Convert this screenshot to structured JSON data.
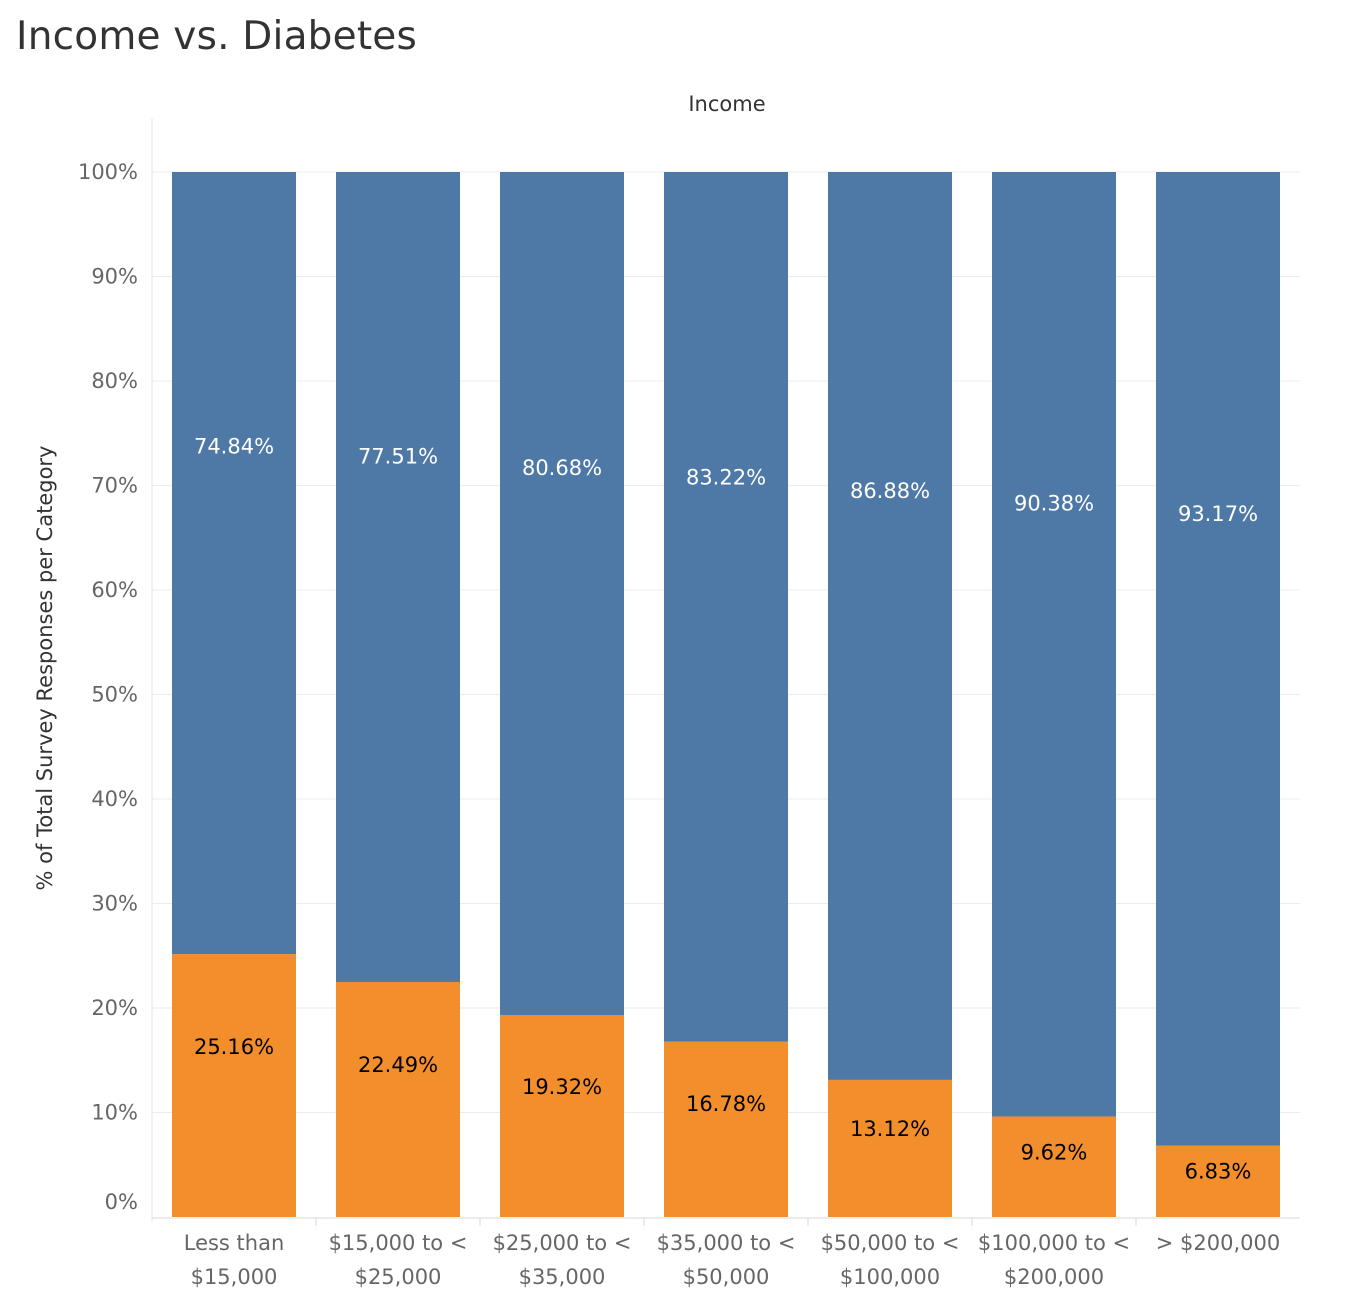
{
  "chart_data": {
    "type": "bar",
    "stacked": true,
    "title": "Income vs. Diabetes",
    "column_header": "Income",
    "ylabel": "% of Total Survey Responses per Category",
    "ylim": [
      0,
      100
    ],
    "y_ticks": [
      "0%",
      "10%",
      "20%",
      "30%",
      "40%",
      "50%",
      "60%",
      "70%",
      "80%",
      "90%",
      "100%"
    ],
    "grid": true,
    "legend": "none",
    "categories": [
      [
        "Less than",
        "$15,000"
      ],
      [
        "$15,000 to <",
        "$25,000"
      ],
      [
        "$25,000 to <",
        "$35,000"
      ],
      [
        "$35,000 to <",
        "$50,000"
      ],
      [
        "$50,000 to <",
        "$100,000"
      ],
      [
        "$100,000 to <",
        "$200,000"
      ],
      [
        "> $200,000"
      ]
    ],
    "series": [
      {
        "color": "#F28E2B",
        "label_color": "#000000",
        "values": [
          25.16,
          22.49,
          19.32,
          16.78,
          13.12,
          9.62,
          6.83
        ],
        "labels": [
          "25.16%",
          "22.49%",
          "19.32%",
          "16.78%",
          "13.12%",
          "9.62%",
          "6.83%"
        ]
      },
      {
        "color": "#4E79A7",
        "label_color": "#FFFFFF",
        "values": [
          74.84,
          77.51,
          80.68,
          83.22,
          86.88,
          90.38,
          93.17
        ],
        "labels": [
          "74.84%",
          "77.51%",
          "80.68%",
          "83.22%",
          "86.88%",
          "90.38%",
          "93.17%"
        ]
      }
    ]
  }
}
